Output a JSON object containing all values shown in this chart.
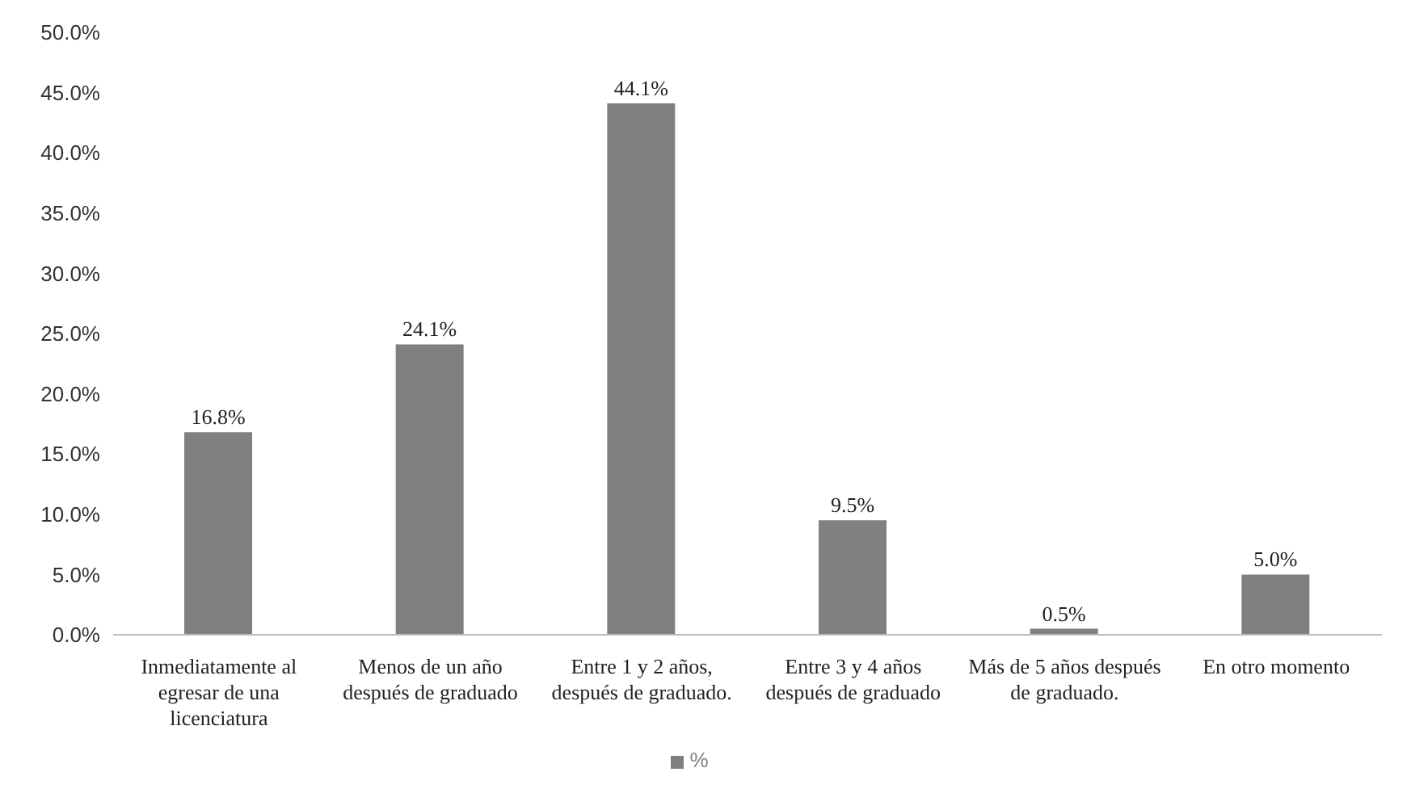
{
  "chart_data": {
    "type": "bar",
    "categories": [
      "Inmediatamente al egresar de una licenciatura",
      "Menos de un año después de graduado",
      "Entre 1 y 2 años, después de graduado.",
      "Entre 3 y 4 años después de graduado",
      "Más de 5 años después de graduado.",
      "En otro momento"
    ],
    "series": [
      {
        "name": "%",
        "color": "#808080",
        "values": [
          16.8,
          24.1,
          44.1,
          9.5,
          0.5,
          5.0
        ],
        "value_labels": [
          "16.8%",
          "24.1%",
          "44.1%",
          "9.5%",
          "0.5%",
          "5.0%"
        ]
      }
    ],
    "ylim": [
      0,
      50
    ],
    "yticks": [
      {
        "value": 0,
        "label": "0.0%"
      },
      {
        "value": 5,
        "label": "5.0%"
      },
      {
        "value": 10,
        "label": "10.0%"
      },
      {
        "value": 15,
        "label": "15.0%"
      },
      {
        "value": 20,
        "label": "20.0%"
      },
      {
        "value": 25,
        "label": "25.0%"
      },
      {
        "value": 30,
        "label": "30.0%"
      },
      {
        "value": 35,
        "label": "35.0%"
      },
      {
        "value": 40,
        "label": "40.0%"
      },
      {
        "value": 45,
        "label": "45.0%"
      },
      {
        "value": 50,
        "label": "50.0%"
      }
    ],
    "grid": false,
    "legend": "bottom"
  }
}
